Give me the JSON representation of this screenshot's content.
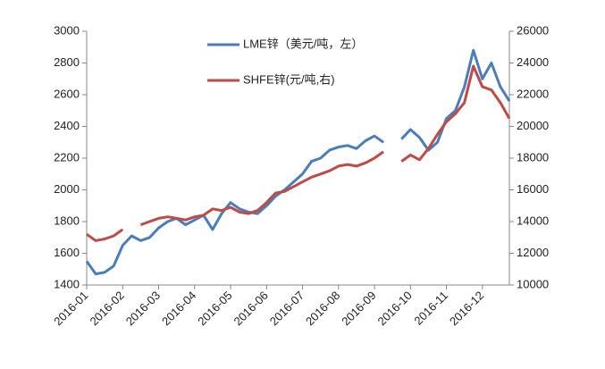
{
  "chart_data": {
    "type": "line",
    "categories": [
      "2016-01",
      null,
      null,
      null,
      "2016-02",
      null,
      null,
      null,
      "2016-03",
      null,
      null,
      null,
      "2016-04",
      null,
      null,
      null,
      "2016-05",
      null,
      null,
      null,
      "2016-06",
      null,
      null,
      null,
      "2016-07",
      null,
      null,
      null,
      "2016-08",
      null,
      null,
      null,
      "2016-09",
      null,
      null,
      null,
      "2016-10",
      null,
      null,
      null,
      "2016-11",
      null,
      null,
      null,
      "2016-12",
      null,
      null,
      null
    ],
    "series": [
      {
        "name": "LME锌（美元/吨，左）",
        "color": "#4a7ebb",
        "axis": "y",
        "values": [
          1550,
          1470,
          1480,
          1520,
          1650,
          1710,
          1680,
          1700,
          1760,
          1800,
          1820,
          1780,
          1810,
          1840,
          1750,
          1850,
          1920,
          1880,
          1860,
          1850,
          1900,
          1960,
          2000,
          2050,
          2100,
          2180,
          2200,
          2250,
          2270,
          2280,
          2260,
          2310,
          2340,
          2300,
          null,
          2320,
          2380,
          2330,
          2250,
          2300,
          2450,
          2500,
          2650,
          2880,
          2700,
          2800,
          2650,
          2560
        ]
      },
      {
        "name": "SHFE锌(元/吨,右)",
        "color": "#be4b48",
        "axis": "y2",
        "values": [
          13200,
          12800,
          12900,
          13100,
          13500,
          null,
          13800,
          14000,
          14200,
          14300,
          14200,
          14100,
          14300,
          14400,
          14800,
          14700,
          14900,
          14600,
          14500,
          14700,
          15200,
          15800,
          15900,
          16200,
          16500,
          16800,
          17000,
          17200,
          17500,
          17600,
          17500,
          17700,
          18000,
          18400,
          null,
          17800,
          18200,
          17900,
          18600,
          19500,
          20300,
          20800,
          21500,
          23800,
          22500,
          22300,
          21500,
          20500
        ]
      }
    ],
    "ylim": [
      1400,
      3000
    ],
    "yticks": [
      1400,
      1600,
      1800,
      2000,
      2200,
      2400,
      2600,
      2800,
      3000
    ],
    "y2lim": [
      10000,
      26000
    ],
    "y2ticks": [
      10000,
      12000,
      14000,
      16000,
      18000,
      20000,
      22000,
      24000,
      26000
    ],
    "grid": false
  }
}
